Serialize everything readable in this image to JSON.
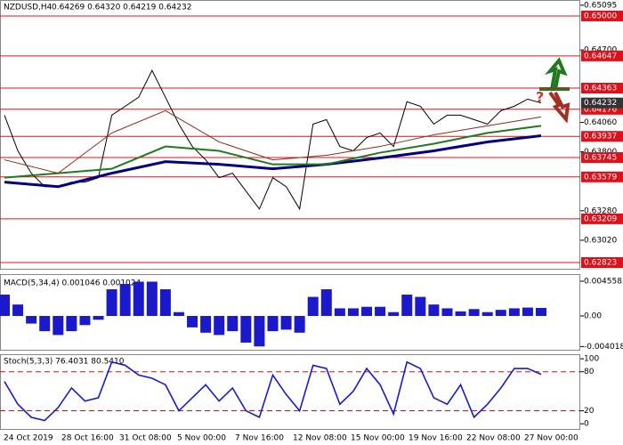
{
  "chart_data": [
    {
      "type": "line",
      "title": "NZDUSD,H4",
      "quote": "0.64269 0.64320 0.64219 0.64232",
      "annotation": "?",
      "ylim": [
        0.62768,
        0.65141
      ],
      "yticks": [
        0.65095,
        {
          "value": 0.647,
          "label": "0.64700"
        },
        {
          "value": 0.6406,
          "label": "0.64060"
        },
        {
          "value": 0.638,
          "label": "0.63800"
        },
        {
          "value": 0.6328,
          "label": "0.63280"
        },
        {
          "value": 0.6302,
          "label": "0.63020"
        }
      ],
      "levels": [
        {
          "value": 0.65,
          "label": "0.65000"
        },
        0.64647,
        0.64363,
        0.64176,
        0.63937,
        {
          "value": 0.6375,
          "label": "0.63745"
        },
        0.63579,
        0.63209,
        0.62823
      ],
      "level_color": "#e0101a",
      "last_price": 0.64232,
      "series": [
        {
          "name": "Close",
          "color": "#000000",
          "values": [
            0.64124,
            0.63809,
            0.63612,
            0.63493,
            0.63493,
            0.63533,
            0.63533,
            0.63572,
            0.64124,
            0.64203,
            0.64282,
            0.64519,
            0.64282,
            0.64045,
            0.63848,
            0.6373,
            0.63572,
            0.63612,
            0.63454,
            0.63296,
            0.63572,
            0.63493,
            0.63296,
            0.64045,
            0.64085,
            0.63848,
            0.63809,
            0.63927,
            0.63967,
            0.63848,
            0.64243,
            0.64203,
            0.64045,
            0.64124,
            0.64124,
            0.64085,
            0.64045,
            0.64164,
            0.64203,
            0.64266,
            0.64232
          ]
        },
        {
          "color": "#000080",
          "width": 3,
          "x": [
            0,
            4,
            8,
            12,
            16,
            20,
            24,
            28,
            32,
            36,
            40
          ],
          "values": [
            0.63533,
            0.63493,
            0.63612,
            0.63714,
            0.6369,
            0.63651,
            0.6369,
            0.63746,
            0.63809,
            0.63888,
            0.63943
          ]
        },
        {
          "color": "#1e7a1e",
          "width": 2,
          "x": [
            0,
            4,
            8,
            12,
            16,
            20,
            24,
            28,
            32,
            36,
            40
          ],
          "values": [
            0.63572,
            0.63612,
            0.63651,
            0.63848,
            0.63809,
            0.6369,
            0.6369,
            0.63793,
            0.63872,
            0.63967,
            0.6403
          ]
        },
        {
          "color": "#8b2a1a",
          "width": 1,
          "x": [
            0,
            4,
            8,
            12,
            16,
            20,
            24,
            28,
            32,
            36,
            40
          ],
          "values": [
            0.6373,
            0.63612,
            0.63967,
            0.64164,
            0.63888,
            0.6373,
            0.6377,
            0.63848,
            0.63951,
            0.6403,
            0.64109
          ]
        }
      ]
    },
    {
      "type": "bar",
      "title": "MACD(5,34,4) 0.001046 0.001024",
      "color": "#1a1acc",
      "ylim": [
        -0.00444,
        0.00549
      ],
      "yticks": [
        0.004558,
        {
          "value": 0,
          "label": "0.00"
        },
        -0.004018
      ],
      "values": [
        0.0028,
        0.0015,
        -0.001,
        -0.002,
        -0.0025,
        -0.002,
        -0.0012,
        -0.0005,
        0.0035,
        0.0042,
        0.0045,
        0.0045,
        0.0035,
        0.0005,
        -0.0015,
        -0.0022,
        -0.0025,
        -0.002,
        -0.0035,
        -0.004,
        -0.002,
        -0.0018,
        -0.0022,
        0.0025,
        0.0035,
        0.001,
        0.001,
        0.0012,
        0.0012,
        0.0005,
        0.0028,
        0.0025,
        0.0015,
        0.001,
        0.0006,
        0.0009,
        0.0005,
        0.0008,
        0.001,
        0.0011,
        0.00105
      ]
    },
    {
      "type": "line",
      "title": "Stoch(5,3,3) 76.4031 80.5410",
      "color": "#1a1acc",
      "ylim": [
        -8,
        107
      ],
      "yticks": [
        0,
        20,
        80,
        100
      ],
      "levels": [
        20,
        80
      ],
      "level_color": "#d01010",
      "values": [
        65,
        30,
        10,
        5,
        25,
        55,
        35,
        40,
        95,
        90,
        75,
        70,
        60,
        20,
        40,
        60,
        35,
        55,
        20,
        10,
        75,
        45,
        20,
        90,
        85,
        30,
        50,
        85,
        60,
        15,
        95,
        85,
        40,
        30,
        60,
        10,
        30,
        55,
        85,
        85,
        76
      ]
    }
  ],
  "time_axis": [
    "24 Oct 2019",
    "28 Oct 16:00",
    "31 Oct 08:00",
    "5 Nov 00:00",
    "7 Nov 16:00",
    "12 Nov 08:00",
    "15 Nov 00:00",
    "19 Nov 16:00",
    "22 Nov 08:00",
    "27 Nov 00:00"
  ]
}
